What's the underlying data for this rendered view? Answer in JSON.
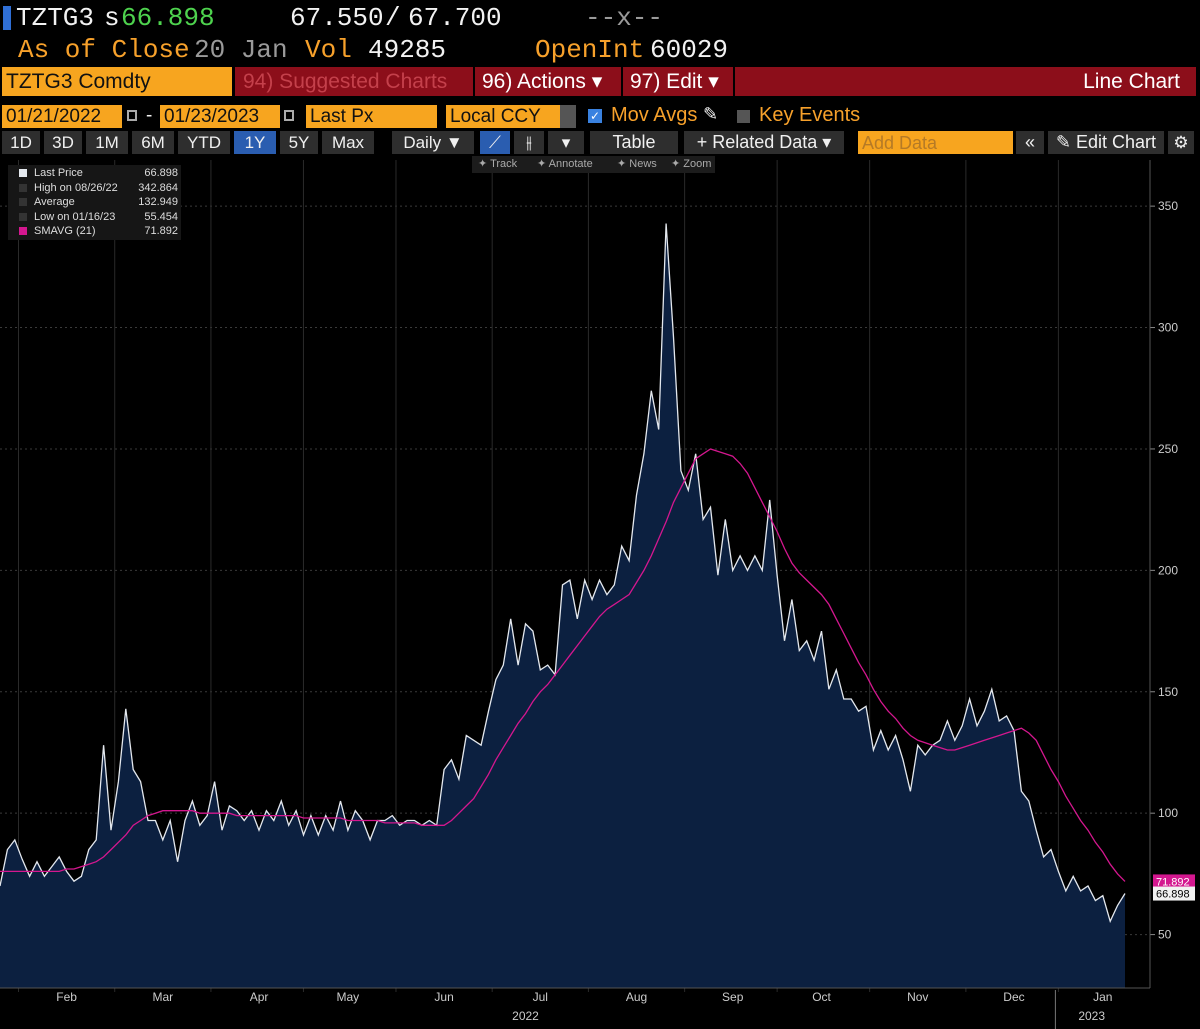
{
  "header": {
    "ticker": "TZTG3",
    "price_prefix": "s",
    "price": "66.898",
    "bid": "67.550",
    "ask_sep": "/",
    "ask": "67.700",
    "change": "--x--",
    "as_of": "As of Close",
    "date": "20 Jan",
    "vol_label": "Vol",
    "vol": "49285",
    "oi_label": "OpenInt",
    "oi": "60029"
  },
  "menu": {
    "security": "TZTG3 Comdty",
    "suggested": "94) Suggested Charts",
    "actions": "96) Actions ▾",
    "edit": "97) Edit ▾",
    "chart_type": "Line Chart"
  },
  "controls": {
    "start": "01/21/2022",
    "dash": "-",
    "end": "01/23/2023",
    "field": "Last Px",
    "currency": "Local CCY",
    "mov_avgs": "Mov Avgs",
    "key_events": "Key Events"
  },
  "toolbar": {
    "periods": [
      "1D",
      "3D",
      "1M",
      "6M",
      "YTD",
      "1Y",
      "5Y",
      "Max"
    ],
    "frequency": "Daily ▼",
    "table": "Table",
    "related": "+ Related Data ▾",
    "add_data": "Add Data",
    "edit_chart": "Edit Chart"
  },
  "tools": [
    "Track",
    "Annotate",
    "News",
    "Zoom"
  ],
  "chart_data": {
    "type": "line",
    "categories": [
      null,
      null,
      null,
      null,
      null,
      null,
      null,
      null,
      null,
      "Feb",
      null,
      null,
      null,
      null,
      null,
      null,
      null,
      null,
      null,
      null,
      null,
      null,
      "Mar",
      null,
      null,
      null,
      null,
      null,
      null,
      null,
      null,
      null,
      null,
      null,
      null,
      "Apr",
      null,
      null,
      null,
      null,
      null,
      null,
      null,
      null,
      null,
      null,
      null,
      "May",
      null,
      null,
      null,
      null,
      null,
      null,
      null,
      null,
      null,
      null,
      null,
      null,
      "Jun",
      null,
      null,
      null,
      null,
      null,
      null,
      null,
      null,
      null,
      null,
      null,
      null,
      "Jul",
      null,
      null,
      null,
      null,
      null,
      null,
      null,
      null,
      null,
      null,
      null,
      null,
      "Aug",
      null,
      null,
      null,
      null,
      null,
      null,
      null,
      null,
      null,
      null,
      null,
      null,
      "Sep",
      null,
      null,
      null,
      null,
      null,
      null,
      null,
      null,
      null,
      null,
      null,
      "Oct",
      null,
      null,
      null,
      null,
      null,
      null,
      null,
      null,
      null,
      null,
      null,
      null,
      "Nov",
      null,
      null,
      null,
      null,
      null,
      null,
      null,
      null,
      null,
      null,
      null,
      null,
      "Dec",
      null,
      null,
      null,
      null,
      null,
      null,
      null,
      null,
      null,
      null,
      null,
      "Jan",
      null,
      null,
      null
    ],
    "series": [
      {
        "name": "Last Price",
        "color": "#e4e8ee",
        "fill": "#0c2040",
        "values": [
          70,
          85,
          89,
          81,
          74,
          80,
          74,
          78,
          82,
          76,
          72,
          74,
          85,
          89,
          128,
          93,
          113,
          143,
          118,
          113,
          97,
          97,
          89,
          97,
          80,
          97,
          105,
          95,
          99,
          113,
          93,
          103,
          101,
          97,
          101,
          93,
          101,
          97,
          105,
          95,
          101,
          91,
          99,
          91,
          99,
          93,
          105,
          93,
          101,
          97,
          89,
          97,
          97,
          99,
          95,
          97,
          97,
          95,
          97,
          95,
          118,
          122,
          114,
          132,
          130,
          128,
          142,
          155,
          161,
          180,
          161,
          178,
          175,
          159,
          161,
          157,
          194,
          196,
          180,
          196,
          188,
          196,
          190,
          194,
          210,
          204,
          231,
          248,
          274,
          258,
          342.864,
          296,
          241,
          233,
          248,
          221,
          226,
          198,
          221,
          200,
          206,
          200,
          206,
          200,
          229,
          198,
          171,
          188,
          167,
          171,
          163,
          175,
          151,
          159,
          147,
          147,
          142,
          144,
          126,
          134,
          126,
          132,
          122,
          109,
          128,
          124,
          128,
          130,
          138,
          130,
          136,
          147,
          136,
          142,
          151,
          138,
          140,
          134,
          109,
          105,
          93,
          82,
          85,
          76,
          68,
          74,
          68,
          70,
          64,
          66,
          55.454,
          62,
          66.898
        ]
      },
      {
        "name": "SMAVG (21)",
        "color": "#d4178f",
        "values": [
          76,
          76,
          76,
          76,
          76,
          76,
          76,
          76,
          76,
          77,
          77,
          78,
          79,
          80,
          82,
          85,
          88,
          91,
          95,
          97,
          99,
          100,
          101,
          101,
          101,
          101,
          101,
          100,
          100,
          100,
          100,
          100,
          99,
          99,
          99,
          99,
          99,
          99,
          99,
          99,
          99,
          98,
          98,
          98,
          98,
          98,
          98,
          97,
          97,
          97,
          97,
          97,
          96,
          96,
          96,
          96,
          96,
          95,
          95,
          95,
          95,
          97,
          100,
          103,
          106,
          111,
          116,
          122,
          127,
          132,
          137,
          141,
          146,
          150,
          153,
          157,
          161,
          165,
          169,
          173,
          177,
          181,
          184,
          186,
          188,
          190,
          195,
          200,
          206,
          213,
          220,
          228,
          234,
          240,
          246,
          248,
          250,
          249,
          248,
          247,
          244,
          240,
          234,
          228,
          222,
          216,
          209,
          203,
          199,
          196,
          193,
          190,
          186,
          180,
          174,
          168,
          162,
          157,
          151,
          146,
          142,
          139,
          135,
          132,
          130,
          129,
          128,
          127,
          126,
          126,
          127,
          128,
          129,
          130,
          131,
          132,
          133,
          134,
          135,
          133,
          130,
          124,
          118,
          113,
          107,
          102,
          97,
          93,
          88,
          84,
          79,
          75,
          71.892
        ]
      }
    ],
    "ylim": [
      28,
      369
    ],
    "yticks": [
      50,
      100,
      150,
      200,
      250,
      300,
      350
    ],
    "grid": true,
    "x_groups": [
      {
        "label": "2022",
        "count": 143
      },
      {
        "label": "2023",
        "count": 10
      }
    ],
    "legend_stats": [
      {
        "label": "High on 08/26/22",
        "value": 342.864
      },
      {
        "label": "Average",
        "value": 132.949
      },
      {
        "label": "Low on 01/16/23",
        "value": 55.454
      }
    ]
  }
}
